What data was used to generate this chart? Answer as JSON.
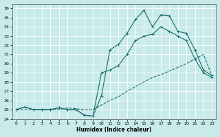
{
  "xlabel": "Humidex (Indice chaleur)",
  "xlim": [
    -0.5,
    23.5
  ],
  "ylim": [
    24,
    36.5
  ],
  "ytick_min": 24,
  "ytick_max": 36,
  "xticks": [
    0,
    1,
    2,
    3,
    4,
    5,
    6,
    7,
    8,
    9,
    10,
    11,
    12,
    13,
    14,
    15,
    16,
    17,
    18,
    19,
    20,
    21,
    22,
    23
  ],
  "bg_color": "#c8eaea",
  "grid_color": "#b0d8d8",
  "line_color": "#1a6b6b",
  "line1_y": [
    25.0,
    25.3,
    25.0,
    25.0,
    25.0,
    25.2,
    25.0,
    25.0,
    24.4,
    24.3,
    26.5,
    31.5,
    32.1,
    33.3,
    34.8,
    35.8,
    34.0,
    35.3,
    35.2,
    33.5,
    33.3,
    31.5,
    29.3,
    28.7
  ],
  "line2_y": [
    25.0,
    25.3,
    25.0,
    25.0,
    25.0,
    25.2,
    25.0,
    25.0,
    24.4,
    24.3,
    29.0,
    29.3,
    29.8,
    31.0,
    32.5,
    33.0,
    33.2,
    34.0,
    33.5,
    33.0,
    32.5,
    30.5,
    29.0,
    28.5
  ],
  "line3_y": [
    25.0,
    25.0,
    25.0,
    25.0,
    25.0,
    25.0,
    25.2,
    25.1,
    25.0,
    25.0,
    25.5,
    26.0,
    26.4,
    27.0,
    27.5,
    28.0,
    28.5,
    28.8,
    29.2,
    29.6,
    30.0,
    30.5,
    31.0,
    28.7
  ]
}
